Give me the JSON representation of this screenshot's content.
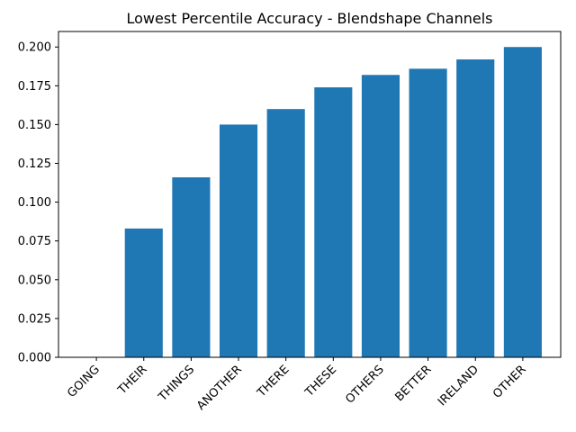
{
  "chart_data": {
    "type": "bar",
    "title": "Lowest Percentile Accuracy - Blendshape Channels",
    "xlabel": "",
    "ylabel": "",
    "categories": [
      "GOING",
      "THEIR",
      "THINGS",
      "ANOTHER",
      "THERE",
      "THESE",
      "OTHERS",
      "BETTER",
      "IRELAND",
      "OTHER"
    ],
    "values": [
      0.0,
      0.083,
      0.116,
      0.15,
      0.16,
      0.174,
      0.182,
      0.186,
      0.192,
      0.2
    ],
    "ylim": [
      0,
      0.21
    ],
    "yticks": [
      "0.000",
      "0.025",
      "0.050",
      "0.075",
      "0.100",
      "0.125",
      "0.150",
      "0.175",
      "0.200"
    ],
    "bar_color": "#1f77b4",
    "grid": false
  }
}
